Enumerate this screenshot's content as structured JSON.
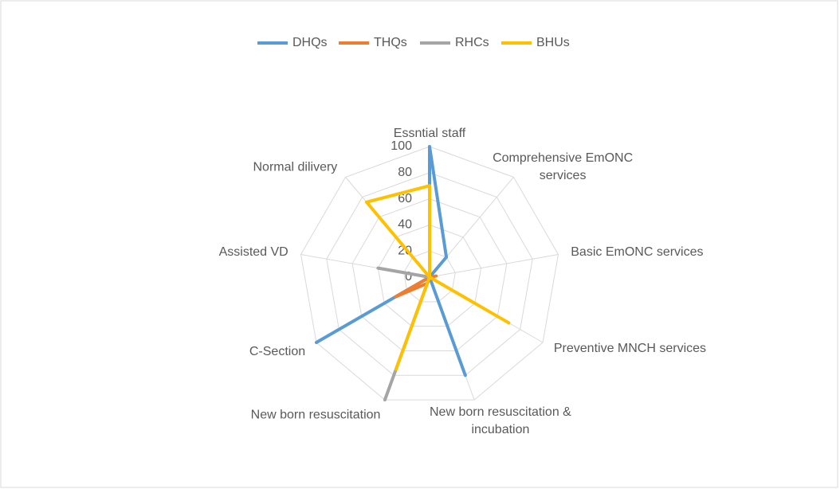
{
  "chart_data": {
    "type": "radar",
    "categories": [
      "Essntial staff",
      "Comprehensive EmONC services",
      "Basic EmONC services",
      "Preventive MNCH services",
      "New born resuscitation & incubation",
      "New born resuscitation",
      "C-Section",
      "Assisted VD",
      "Normal dilivery"
    ],
    "series": [
      {
        "name": "DHQs",
        "color": "#5b9bd5",
        "values": [
          100,
          20,
          0,
          0,
          80,
          0,
          100,
          0,
          0
        ]
      },
      {
        "name": "THQs",
        "color": "#ed7d31",
        "values": [
          0,
          0,
          5,
          0,
          0,
          5,
          30,
          0,
          0
        ]
      },
      {
        "name": "RHCs",
        "color": "#a5a5a5",
        "values": [
          0,
          0,
          0,
          0,
          0,
          100,
          0,
          40,
          0
        ]
      },
      {
        "name": "BHUs",
        "color": "#ffc000",
        "values": [
          70,
          0,
          0,
          70,
          0,
          75,
          0,
          0,
          75
        ]
      }
    ],
    "ylim": [
      0,
      100
    ],
    "yticks": [
      0,
      20,
      40,
      60,
      80,
      100
    ],
    "grid": true,
    "legend": "top"
  }
}
